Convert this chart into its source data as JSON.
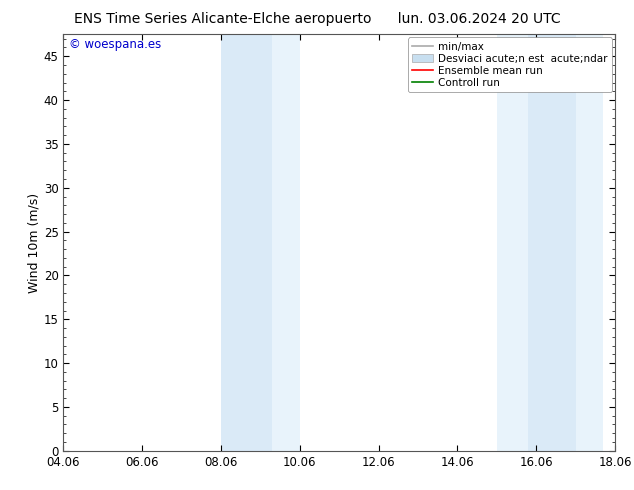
{
  "title_left": "ENS Time Series Alicante-Elche aeropuerto",
  "title_right": "lun. 03.06.2024 20 UTC",
  "ylabel": "Wind 10m (m/s)",
  "xlabel_ticks": [
    "04.06",
    "06.06",
    "08.06",
    "10.06",
    "12.06",
    "14.06",
    "16.06",
    "18.06"
  ],
  "x_tick_positions": [
    0,
    2,
    4,
    6,
    8,
    10,
    12,
    14
  ],
  "xlim": [
    0,
    14
  ],
  "ylim": [
    0,
    47.5
  ],
  "yticks": [
    0,
    5,
    10,
    15,
    20,
    25,
    30,
    35,
    40,
    45
  ],
  "background_color": "#ffffff",
  "plot_bg_color": "#ffffff",
  "shaded_regions": [
    {
      "xmin": 4.0,
      "xmax": 5.3,
      "color": "#daeaf7"
    },
    {
      "xmin": 5.3,
      "xmax": 6.0,
      "color": "#e8f3fb"
    },
    {
      "xmin": 11.0,
      "xmax": 11.8,
      "color": "#e8f3fb"
    },
    {
      "xmin": 11.8,
      "xmax": 13.0,
      "color": "#daeaf7"
    },
    {
      "xmin": 13.0,
      "xmax": 13.7,
      "color": "#e8f3fb"
    }
  ],
  "legend_labels": [
    "min/max",
    "Desviaci acute;n est  acute;ndar",
    "Ensemble mean run",
    "Controll run"
  ],
  "legend_colors": [
    "#999999",
    "#c8dff0",
    "#ff0000",
    "#008000"
  ],
  "watermark_text": "© woespana.es",
  "watermark_color": "#0000cc",
  "title_fontsize": 10,
  "axis_fontsize": 9,
  "tick_fontsize": 8.5,
  "legend_fontsize": 7.5
}
